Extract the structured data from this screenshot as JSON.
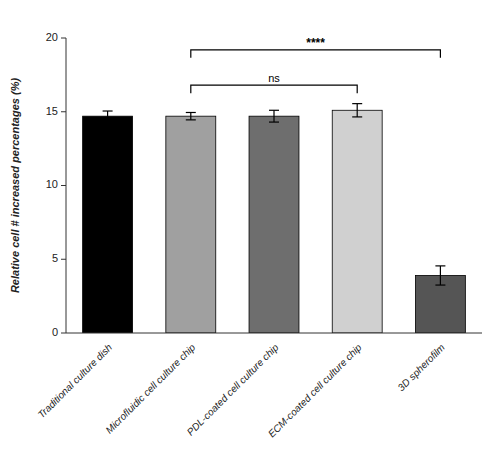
{
  "chart_data": {
    "type": "bar",
    "categories": [
      "Traditional culture dish",
      "Microfluidic cell culture chip",
      "PDL-coated cell culture chip",
      "ECM-coated cell culture chip",
      "3D spherofilm"
    ],
    "values": [
      14.7,
      14.7,
      14.7,
      15.1,
      3.9
    ],
    "errors": [
      0.35,
      0.25,
      0.4,
      0.45,
      0.65
    ],
    "colors": [
      "#000000",
      "#a0a0a0",
      "#6e6e6e",
      "#d0d0d0",
      "#555555"
    ],
    "ylabel": "Relative cell # increased percentages (%)",
    "ylim": [
      0,
      20
    ],
    "yticks": [
      0,
      5,
      10,
      15,
      20
    ],
    "grid": false,
    "annotations": [
      {
        "text": "ns",
        "from": "Microfluidic cell culture chip",
        "to": "ECM-coated cell culture chip",
        "y": 16.8
      },
      {
        "text": "****",
        "from": "Microfluidic cell culture chip",
        "to": "3D spherofilm",
        "y": 19.2
      }
    ]
  }
}
